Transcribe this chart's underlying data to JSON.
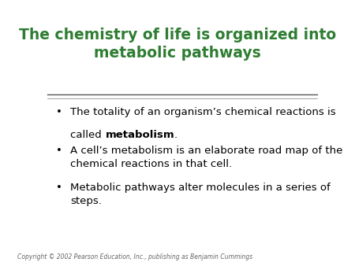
{
  "title_line1": "The chemistry of life is organized into",
  "title_line2": "metabolic pathways",
  "title_color": "#2E7D32",
  "title_fontsize": 13.5,
  "background_color": "#FFFFFF",
  "separator_color": "#555555",
  "text_color": "#000000",
  "bullet_char": "•",
  "body_fontsize": 9.5,
  "copyright_text": "Copyright © 2002 Pearson Education, Inc., publishing as Benjamin Cummings",
  "copyright_fontsize": 5.5,
  "bullet1_line1": "The totality of an organism’s chemical reactions is",
  "bullet1_line2_pre": "called ",
  "bullet1_line2_bold": "metabolism",
  "bullet1_line2_post": ".",
  "bullet2": "A cell’s metabolism is an elaborate road map of the\nchemical reactions in that cell.",
  "bullet3": "Metabolic pathways alter molecules in a series of\nsteps."
}
